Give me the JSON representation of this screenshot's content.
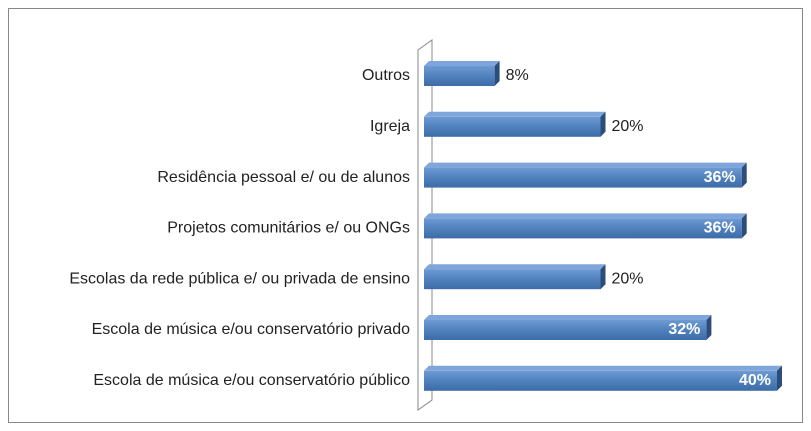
{
  "chart_data": {
    "type": "bar",
    "orientation": "horizontal",
    "categories": [
      "Outros",
      "Igreja",
      "Residência pessoal e/ ou de alunos",
      "Projetos comunitários e/ ou ONGs",
      "Escolas da rede pública e/ ou privada de ensino",
      "Escola de música e/ou conservatório privado",
      "Escola de música e/ou conservatório público"
    ],
    "values": [
      8,
      20,
      36,
      36,
      20,
      32,
      40
    ],
    "value_labels": [
      "8%",
      "20%",
      "36%",
      "36%",
      "20%",
      "32%",
      "40%"
    ],
    "color": "#4f81bd"
  }
}
